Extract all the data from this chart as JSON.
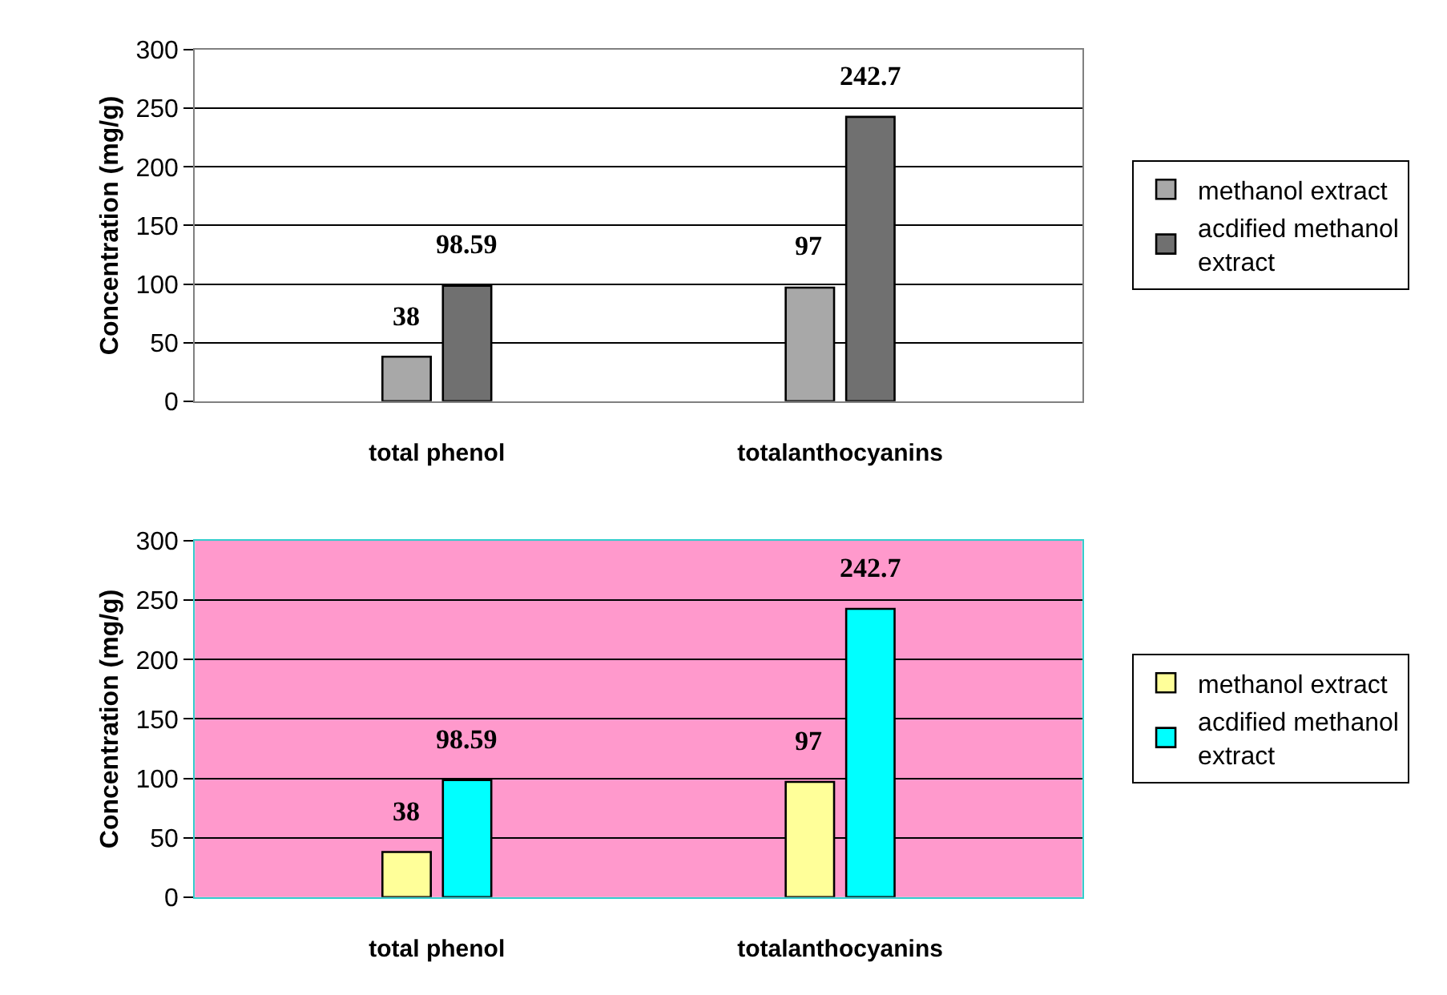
{
  "chart_data": [
    {
      "type": "bar",
      "ylabel": "Concentration (mg/g)",
      "categories": [
        "total phenol",
        "totalanthocyanins"
      ],
      "ylim": [
        0,
        300
      ],
      "yticks": [
        0,
        50,
        100,
        150,
        200,
        250,
        300
      ],
      "grid": "y",
      "legend": "right",
      "data_labels": true,
      "series": [
        {
          "name": "methanol extract",
          "color": "#a8a8a8",
          "values": [
            38,
            97
          ]
        },
        {
          "name": "acdified methanol extract",
          "color": "#707070",
          "values": [
            98.59,
            242.7
          ]
        }
      ]
    },
    {
      "type": "bar",
      "ylabel": "Concentration (mg/g)",
      "categories": [
        "total phenol",
        "totalanthocyanins"
      ],
      "ylim": [
        0,
        300
      ],
      "yticks": [
        0,
        50,
        100,
        150,
        200,
        250,
        300
      ],
      "grid": "y",
      "legend": "right",
      "data_labels": true,
      "series": [
        {
          "name": "methanol extract",
          "color": "#ffff99",
          "values": [
            38,
            97
          ]
        },
        {
          "name": "acdified methanol extract",
          "color": "#00ffff",
          "values": [
            98.59,
            242.7
          ]
        }
      ]
    }
  ]
}
